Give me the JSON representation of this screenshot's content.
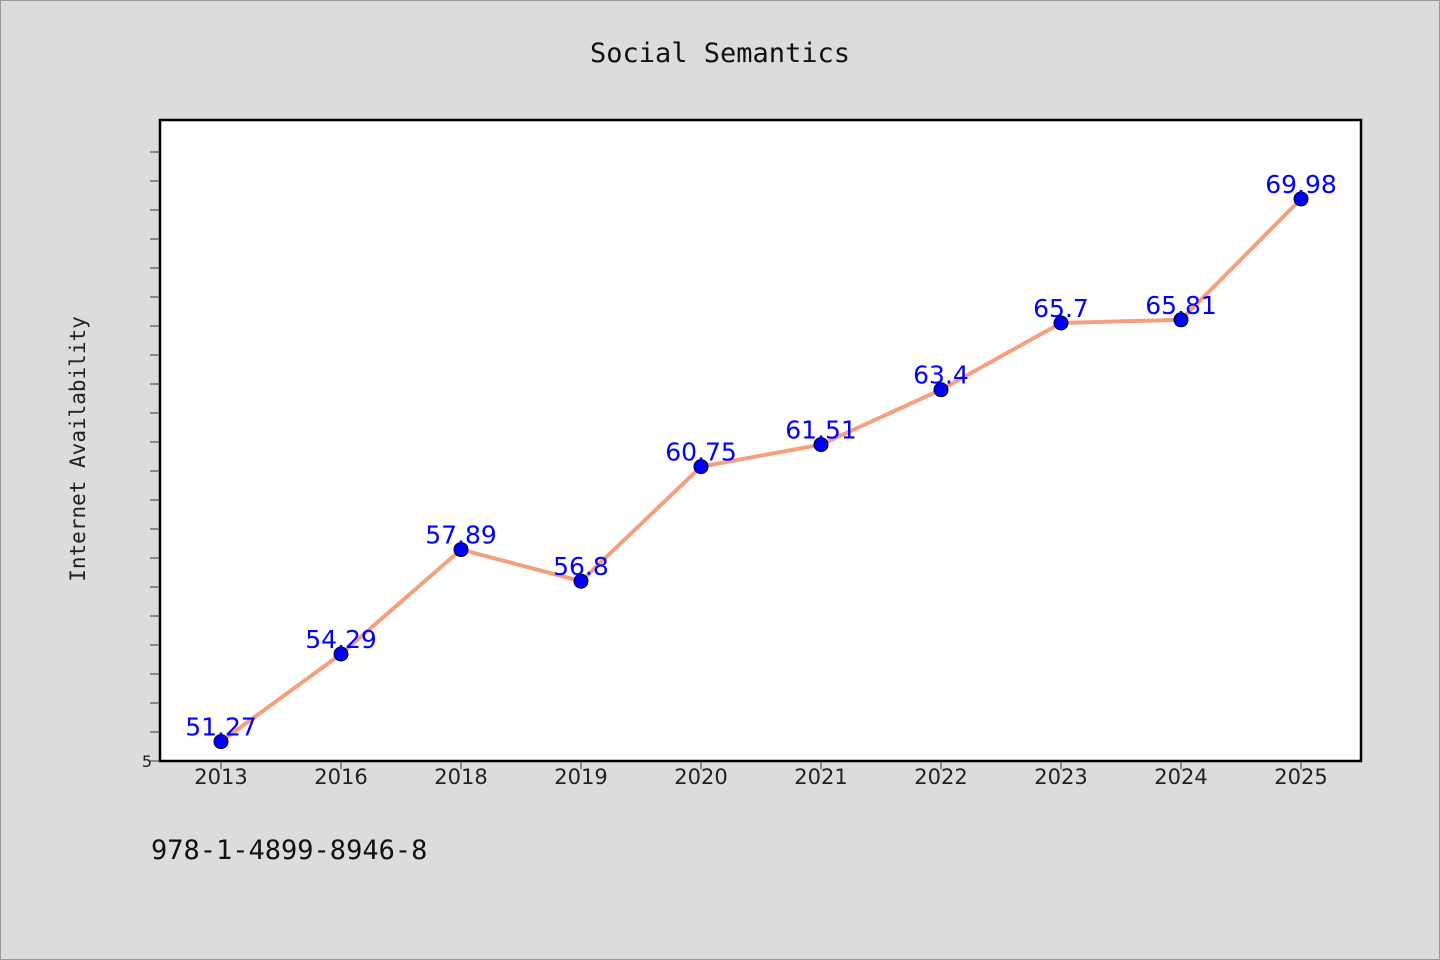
{
  "isbn": "978-1-4899-8946-8",
  "chart_data": {
    "type": "line",
    "title": "Social Semantics",
    "xlabel": "",
    "ylabel": "Internet Availability",
    "categories": [
      "2013",
      "2016",
      "2018",
      "2019",
      "2020",
      "2021",
      "2022",
      "2023",
      "2024",
      "2025"
    ],
    "series": [
      {
        "values": [
          51.27,
          54.29,
          57.89,
          56.8,
          60.75,
          61.51,
          63.4,
          65.7,
          65.81,
          69.98
        ]
      }
    ],
    "data_labels": [
      "51.27",
      "54.29",
      "57.89",
      "56.8",
      "60.75",
      "61.51",
      "63.4",
      "65.7",
      "65.81",
      "69.98"
    ],
    "ylim": [
      50.6,
      72.7
    ],
    "ytick_label_bottom": "5",
    "line_color": "#f4a07e",
    "marker_color": "#0000ff",
    "label_color": "#0000ff",
    "grid": false,
    "legend": "none"
  }
}
